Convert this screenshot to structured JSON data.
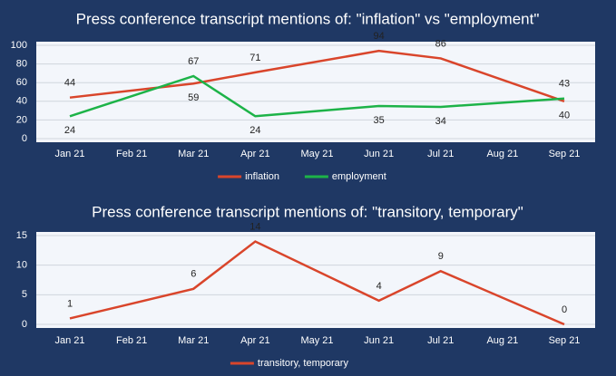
{
  "chart_data": [
    {
      "type": "line",
      "title": "Press conference transcript mentions of: \"inflation\" vs \"employment\"",
      "categories": [
        "Jan 21",
        "Feb 21",
        "Mar 21",
        "Apr 21",
        "May 21",
        "Jun 21",
        "Jul 21",
        "Aug 21",
        "Sep 21"
      ],
      "x": [
        "Jan 21",
        "Mar 21",
        "Apr 21",
        "Jun 21",
        "Jul 21",
        "Sep 21"
      ],
      "series": [
        {
          "name": "inflation",
          "color": "#d9452b",
          "values": [
            44,
            59,
            71,
            94,
            86,
            40
          ]
        },
        {
          "name": "employment",
          "color": "#1db348",
          "values": [
            24,
            67,
            24,
            35,
            34,
            43
          ]
        }
      ],
      "ylim": [
        0,
        100
      ],
      "yticks": [
        0,
        20,
        40,
        60,
        80,
        100
      ],
      "grid": true,
      "legend": "bottom"
    },
    {
      "type": "line",
      "title": "Press conference transcript mentions of: \"transitory, temporary\"",
      "categories": [
        "Jan 21",
        "Feb 21",
        "Mar 21",
        "Apr 21",
        "May 21",
        "Jun 21",
        "Jul 21",
        "Aug 21",
        "Sep 21"
      ],
      "x": [
        "Jan 21",
        "Mar 21",
        "Apr 21",
        "Jun 21",
        "Jul 21",
        "Sep 21"
      ],
      "series": [
        {
          "name": "transitory, temporary",
          "color": "#d9452b",
          "values": [
            1,
            6,
            14,
            4,
            9,
            0
          ]
        }
      ],
      "ylim": [
        0,
        15
      ],
      "yticks": [
        0,
        5,
        10,
        15
      ],
      "grid": true,
      "legend": "bottom"
    }
  ]
}
